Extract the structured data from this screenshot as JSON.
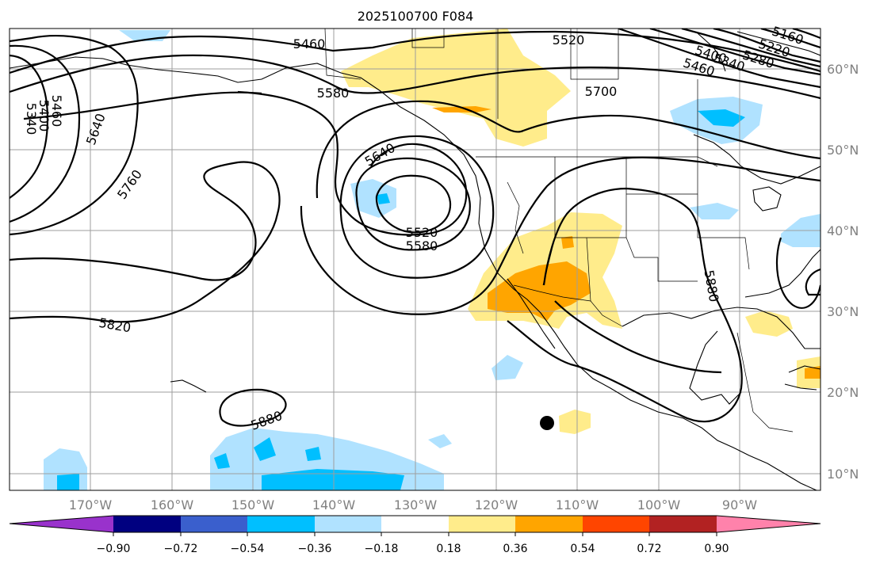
{
  "title": "2025100700 F084",
  "lon_labels": [
    "170°W",
    "160°W",
    "150°W",
    "140°W",
    "130°W",
    "120°W",
    "110°W",
    "100°W",
    "90°W"
  ],
  "lat_labels": [
    "60°N",
    "50°N",
    "40°N",
    "30°N",
    "20°N",
    "10°N"
  ],
  "contour_labels": [
    "5460",
    "5520",
    "5580",
    "5700",
    "5640",
    "5760",
    "5820",
    "5880",
    "5880",
    "5520",
    "5580",
    "5640",
    "5340",
    "5400",
    "5460",
    "5160",
    "5220",
    "5280",
    "5340",
    "5400",
    "5460"
  ],
  "colorbar": {
    "tick_labels": [
      "−0.90",
      "−0.72",
      "−0.54",
      "−0.36",
      "−0.18",
      "0.18",
      "0.36",
      "0.54",
      "0.72",
      "0.90"
    ],
    "colors": [
      "#9932cc",
      "#000080",
      "#3a5fcd",
      "#00bfff",
      "#b0e2ff",
      "#ffffff",
      "#ffec8b",
      "#ffa500",
      "#ff4500",
      "#b22222",
      "#ff82ab"
    ]
  }
}
